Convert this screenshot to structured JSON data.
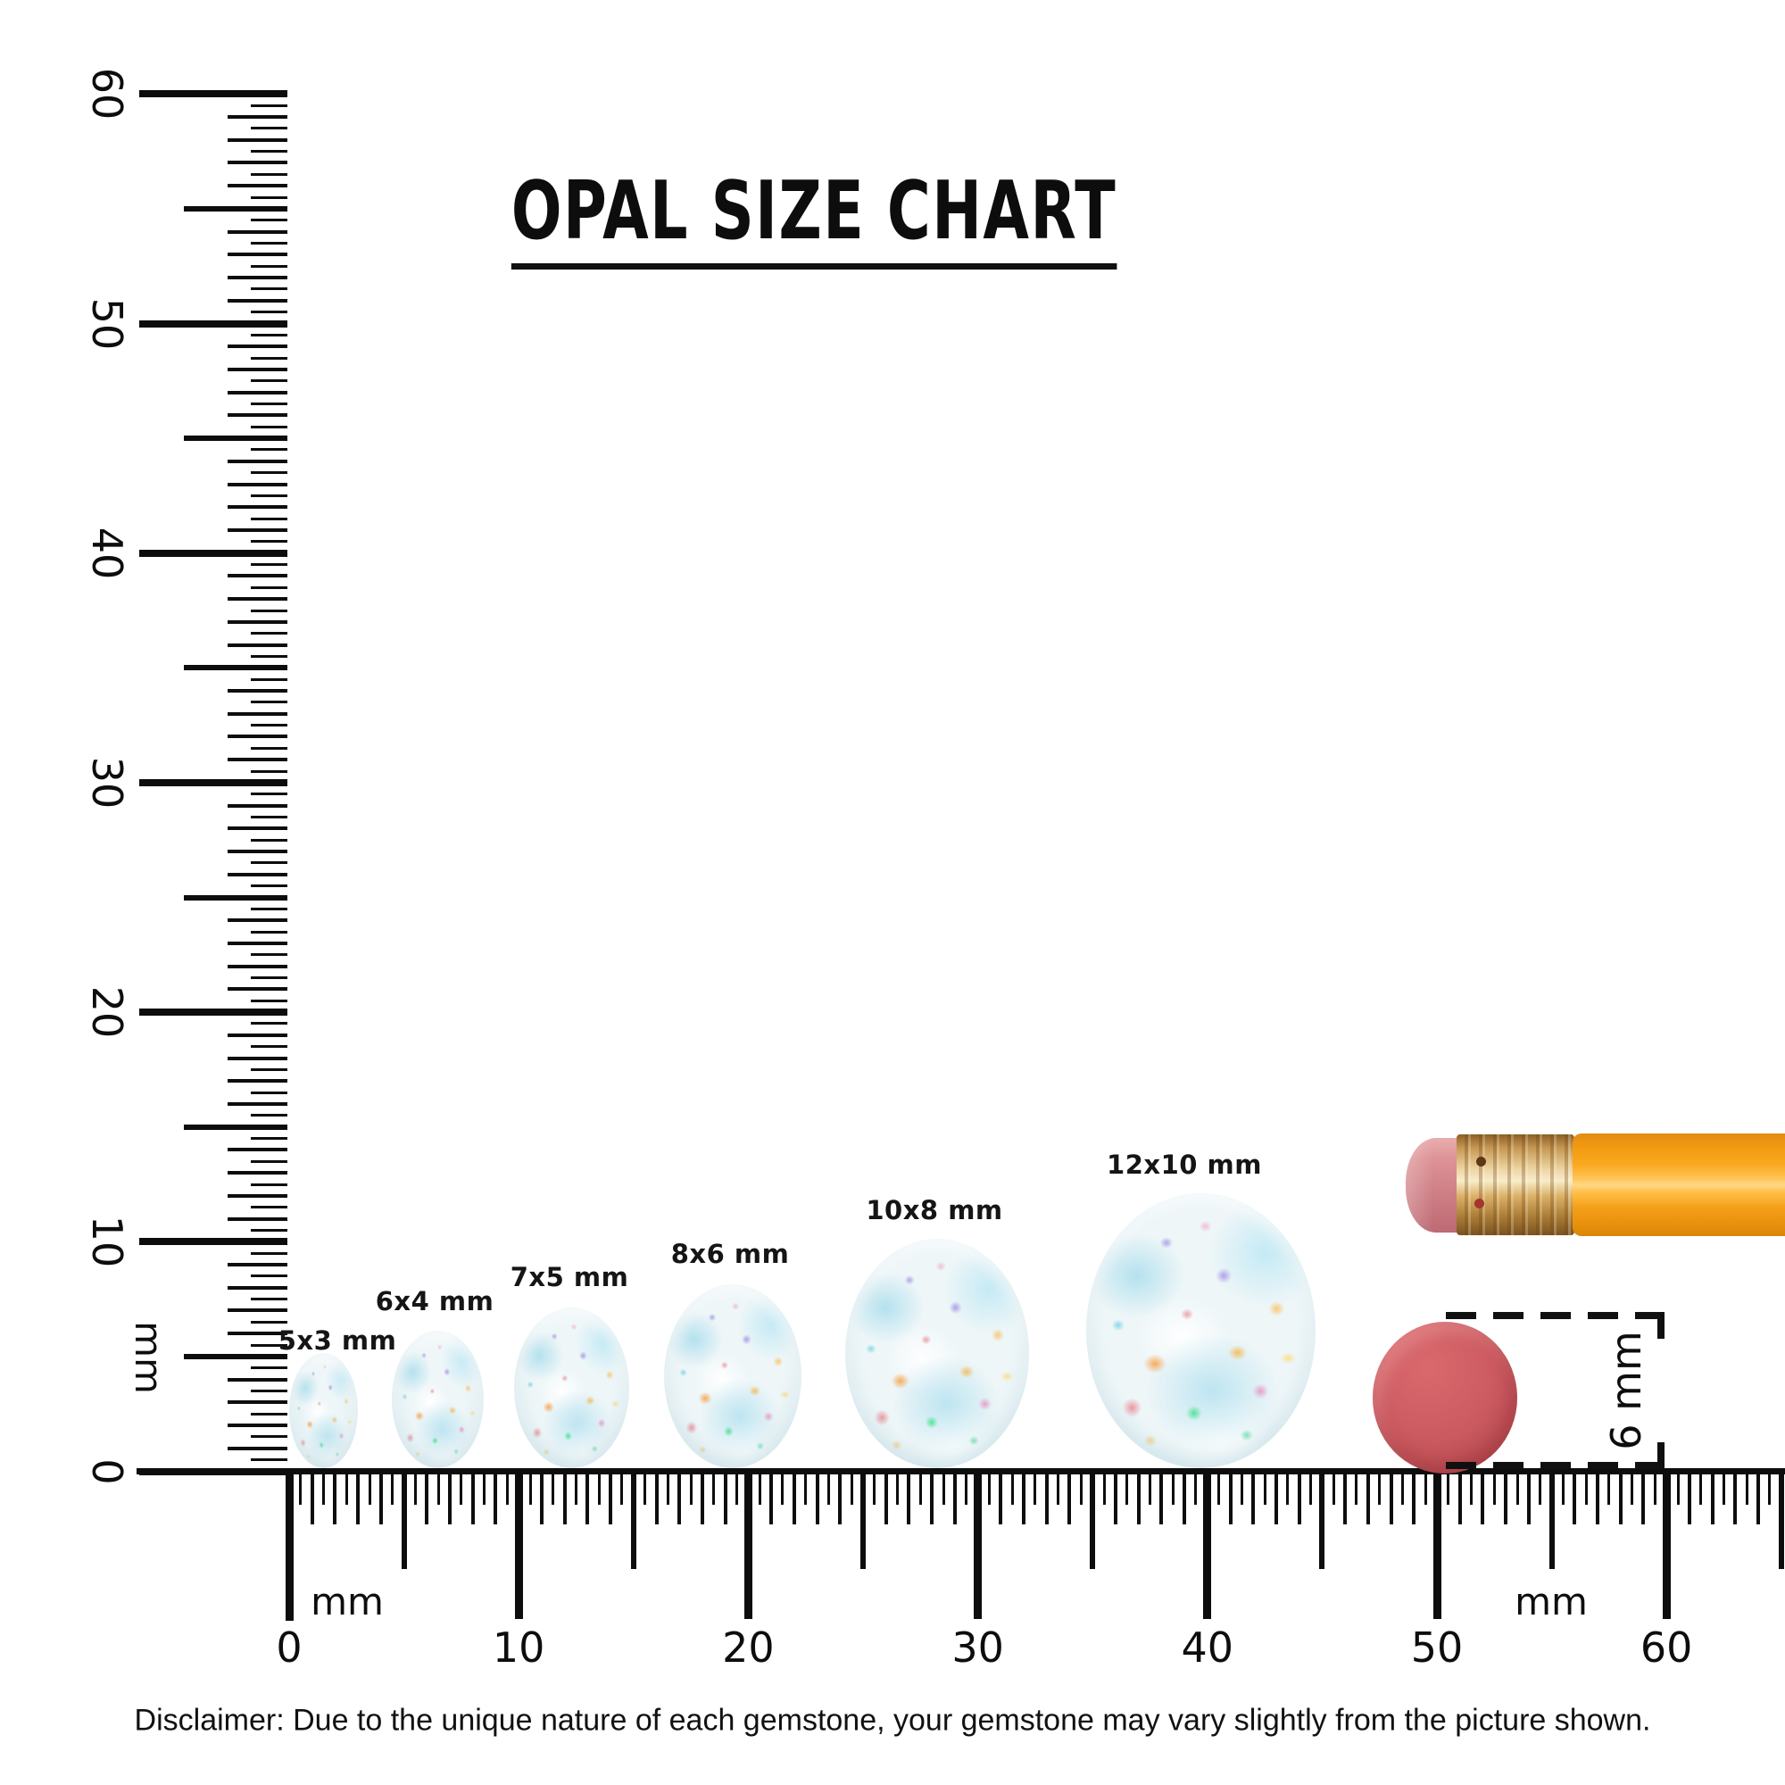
{
  "title": "OPAL SIZE CHART",
  "gems": [
    {
      "label": "5x3 mm",
      "length_mm": 5,
      "width_mm": 3
    },
    {
      "label": "6x4 mm",
      "length_mm": 6,
      "width_mm": 4
    },
    {
      "label": "7x5 mm",
      "length_mm": 7,
      "width_mm": 5
    },
    {
      "label": "8x6 mm",
      "length_mm": 8,
      "width_mm": 6
    },
    {
      "label": "10x8 mm",
      "length_mm": 10,
      "width_mm": 8
    },
    {
      "label": "12x10 mm",
      "length_mm": 12,
      "width_mm": 10
    }
  ],
  "rulers": {
    "unit_label": "mm",
    "horizontal": {
      "tick_labels": [
        "0",
        "10",
        "20",
        "30",
        "40",
        "50",
        "60"
      ]
    },
    "vertical": {
      "tick_labels": [
        "0",
        "10",
        "20",
        "30",
        "40",
        "50",
        "60"
      ]
    }
  },
  "measurement": {
    "label": "6 mm",
    "diameter_mm": 6
  },
  "pencil": {
    "eraser_color": "#cf8187",
    "ferrule_color": "#d9ae66",
    "body_color": "#f5a01a",
    "dot_color": "#cd5c62"
  },
  "disclaimer": "Disclaimer: Due to the unique nature of each gemstone, your gemstone may vary slightly from the picture shown.",
  "colors": {
    "ink": "#0d0d0d",
    "background": "#ffffff"
  }
}
